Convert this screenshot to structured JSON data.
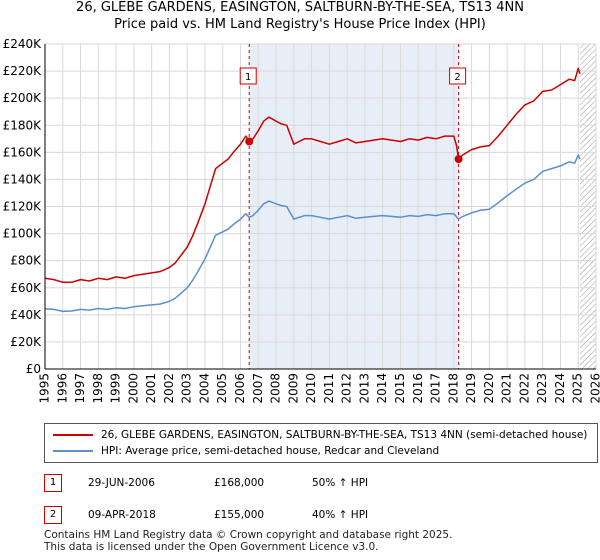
{
  "title_line1": "26, GLEBE GARDENS, EASINGTON, SALTBURN-BY-THE-SEA, TS13 4NN",
  "title_line2": "Price paid vs. HM Land Registry's House Price Index (HPI)",
  "colors": {
    "property": "#cc0000",
    "hpi": "#5b8fcc",
    "shade": "#e8eef8",
    "grid": "#d9d9d9"
  },
  "chart_data": {
    "type": "line",
    "ylim": [
      0,
      240000
    ],
    "xlim": [
      1995,
      2026
    ],
    "y_ticks": [
      0,
      20000,
      40000,
      60000,
      80000,
      100000,
      120000,
      140000,
      160000,
      180000,
      200000,
      220000,
      240000
    ],
    "y_tick_labels": [
      "£0",
      "£20K",
      "£40K",
      "£60K",
      "£80K",
      "£100K",
      "£120K",
      "£140K",
      "£160K",
      "£180K",
      "£200K",
      "£220K",
      "£240K"
    ],
    "x_ticks": [
      1995,
      1996,
      1997,
      1998,
      1999,
      2000,
      2001,
      2002,
      2003,
      2004,
      2005,
      2006,
      2007,
      2008,
      2009,
      2010,
      2011,
      2012,
      2013,
      2014,
      2015,
      2016,
      2017,
      2018,
      2019,
      2020,
      2021,
      2022,
      2023,
      2024,
      2025,
      2026
    ],
    "x_tick_labels": [
      "1995",
      "1996",
      "1997",
      "1998",
      "1999",
      "2000",
      "2001",
      "2002",
      "2003",
      "2004",
      "2005",
      "2006",
      "2007",
      "2008",
      "2009",
      "2010",
      "2011",
      "2012",
      "2013",
      "2014",
      "2015",
      "2016",
      "2017",
      "2018",
      "2019",
      "2020",
      "2021",
      "2022",
      "2023",
      "2024",
      "2025",
      "2026"
    ],
    "shaded_range": [
      2006.49,
      2018.27
    ],
    "hatch_from": 2025.1,
    "series": [
      {
        "name": "26, GLEBE GARDENS, EASINGTON, SALTBURN-BY-THE-SEA, TS13 4NN (semi-detached house)",
        "color_key": "property",
        "x": [
          1995,
          1995.5,
          1996,
          1996.5,
          1997,
          1997.5,
          1998,
          1998.5,
          1999,
          1999.5,
          2000,
          2000.5,
          2001,
          2001.5,
          2002,
          2002.3,
          2002.6,
          2003,
          2003.3,
          2003.6,
          2004,
          2004.3,
          2004.6,
          2005,
          2005.3,
          2005.6,
          2006,
          2006.3,
          2006.49,
          2006.7,
          2007,
          2007.3,
          2007.6,
          2008,
          2008.3,
          2008.6,
          2009,
          2009.3,
          2009.6,
          2010,
          2010.5,
          2011,
          2011.5,
          2012,
          2012.5,
          2013,
          2013.5,
          2014,
          2014.5,
          2015,
          2015.5,
          2016,
          2016.5,
          2017,
          2017.5,
          2018,
          2018.15,
          2018.27,
          2018.5,
          2019,
          2019.5,
          2020,
          2020.5,
          2021,
          2021.5,
          2022,
          2022.5,
          2023,
          2023.5,
          2024,
          2024.5,
          2024.8,
          2025,
          2025.1
        ],
        "y": [
          67000,
          66000,
          64000,
          64000,
          66000,
          65000,
          67000,
          66000,
          68000,
          67000,
          69000,
          70000,
          71000,
          72000,
          75000,
          78000,
          83000,
          90000,
          98000,
          108000,
          122000,
          135000,
          148000,
          152000,
          155000,
          160000,
          166000,
          172000,
          168000,
          170000,
          176000,
          183000,
          186000,
          183000,
          181000,
          180000,
          166000,
          168000,
          170000,
          170000,
          168000,
          166000,
          168000,
          170000,
          167000,
          168000,
          169000,
          170000,
          169000,
          168000,
          170000,
          169000,
          171000,
          170000,
          172000,
          172000,
          165000,
          155000,
          158000,
          162000,
          164000,
          165000,
          172000,
          180000,
          188000,
          195000,
          198000,
          205000,
          206000,
          210000,
          214000,
          213000,
          222000,
          218000
        ]
      },
      {
        "name": "HPI: Average price, semi-detached house, Redcar and Cleveland",
        "color_key": "hpi",
        "x": [
          1995,
          1995.5,
          1996,
          1996.5,
          1997,
          1997.5,
          1998,
          1998.5,
          1999,
          1999.5,
          2000,
          2000.5,
          2001,
          2001.5,
          2002,
          2002.3,
          2002.6,
          2003,
          2003.3,
          2003.6,
          2004,
          2004.3,
          2004.6,
          2005,
          2005.3,
          2005.6,
          2006,
          2006.3,
          2006.49,
          2006.7,
          2007,
          2007.3,
          2007.6,
          2008,
          2008.3,
          2008.6,
          2009,
          2009.3,
          2009.6,
          2010,
          2010.5,
          2011,
          2011.5,
          2012,
          2012.5,
          2013,
          2013.5,
          2014,
          2014.5,
          2015,
          2015.5,
          2016,
          2016.5,
          2017,
          2017.5,
          2018,
          2018.27,
          2018.5,
          2019,
          2019.5,
          2020,
          2020.5,
          2021,
          2021.5,
          2022,
          2022.5,
          2023,
          2023.5,
          2024,
          2024.5,
          2024.8,
          2025,
          2025.1
        ],
        "y": [
          44500,
          44000,
          42500,
          42800,
          44000,
          43500,
          44700,
          44000,
          45300,
          44700,
          46000,
          46700,
          47300,
          48000,
          50000,
          52000,
          55300,
          60000,
          65300,
          72000,
          81300,
          90000,
          98700,
          101300,
          103300,
          106700,
          110700,
          114700,
          112000,
          113300,
          117300,
          122000,
          124000,
          122000,
          120700,
          120000,
          110700,
          112000,
          113300,
          113300,
          112000,
          110700,
          112000,
          113300,
          111300,
          112000,
          112700,
          113300,
          112700,
          112000,
          113300,
          112700,
          114000,
          113300,
          114700,
          114700,
          110700,
          112700,
          115300,
          117300,
          118000,
          122700,
          128000,
          132700,
          137300,
          140000,
          146000,
          148000,
          150000,
          153000,
          152000,
          158000,
          155000
        ]
      }
    ],
    "markers": [
      {
        "label": "1",
        "x": 2006.49,
        "y": 168000
      },
      {
        "label": "2",
        "x": 2018.27,
        "y": 155000
      }
    ]
  },
  "legend": {
    "property_label": "26, GLEBE GARDENS, EASINGTON, SALTBURN-BY-THE-SEA, TS13 4NN (semi-detached house)",
    "hpi_label": "HPI: Average price, semi-detached house, Redcar and Cleveland"
  },
  "sales": [
    {
      "num": "1",
      "date": "29-JUN-2006",
      "price": "£168,000",
      "hpi": "50% ↑ HPI"
    },
    {
      "num": "2",
      "date": "09-APR-2018",
      "price": "£155,000",
      "hpi": "40% ↑ HPI"
    }
  ],
  "footer_line1": "Contains HM Land Registry data © Crown copyright and database right 2025.",
  "footer_line2": "This data is licensed under the Open Government Licence v3.0."
}
